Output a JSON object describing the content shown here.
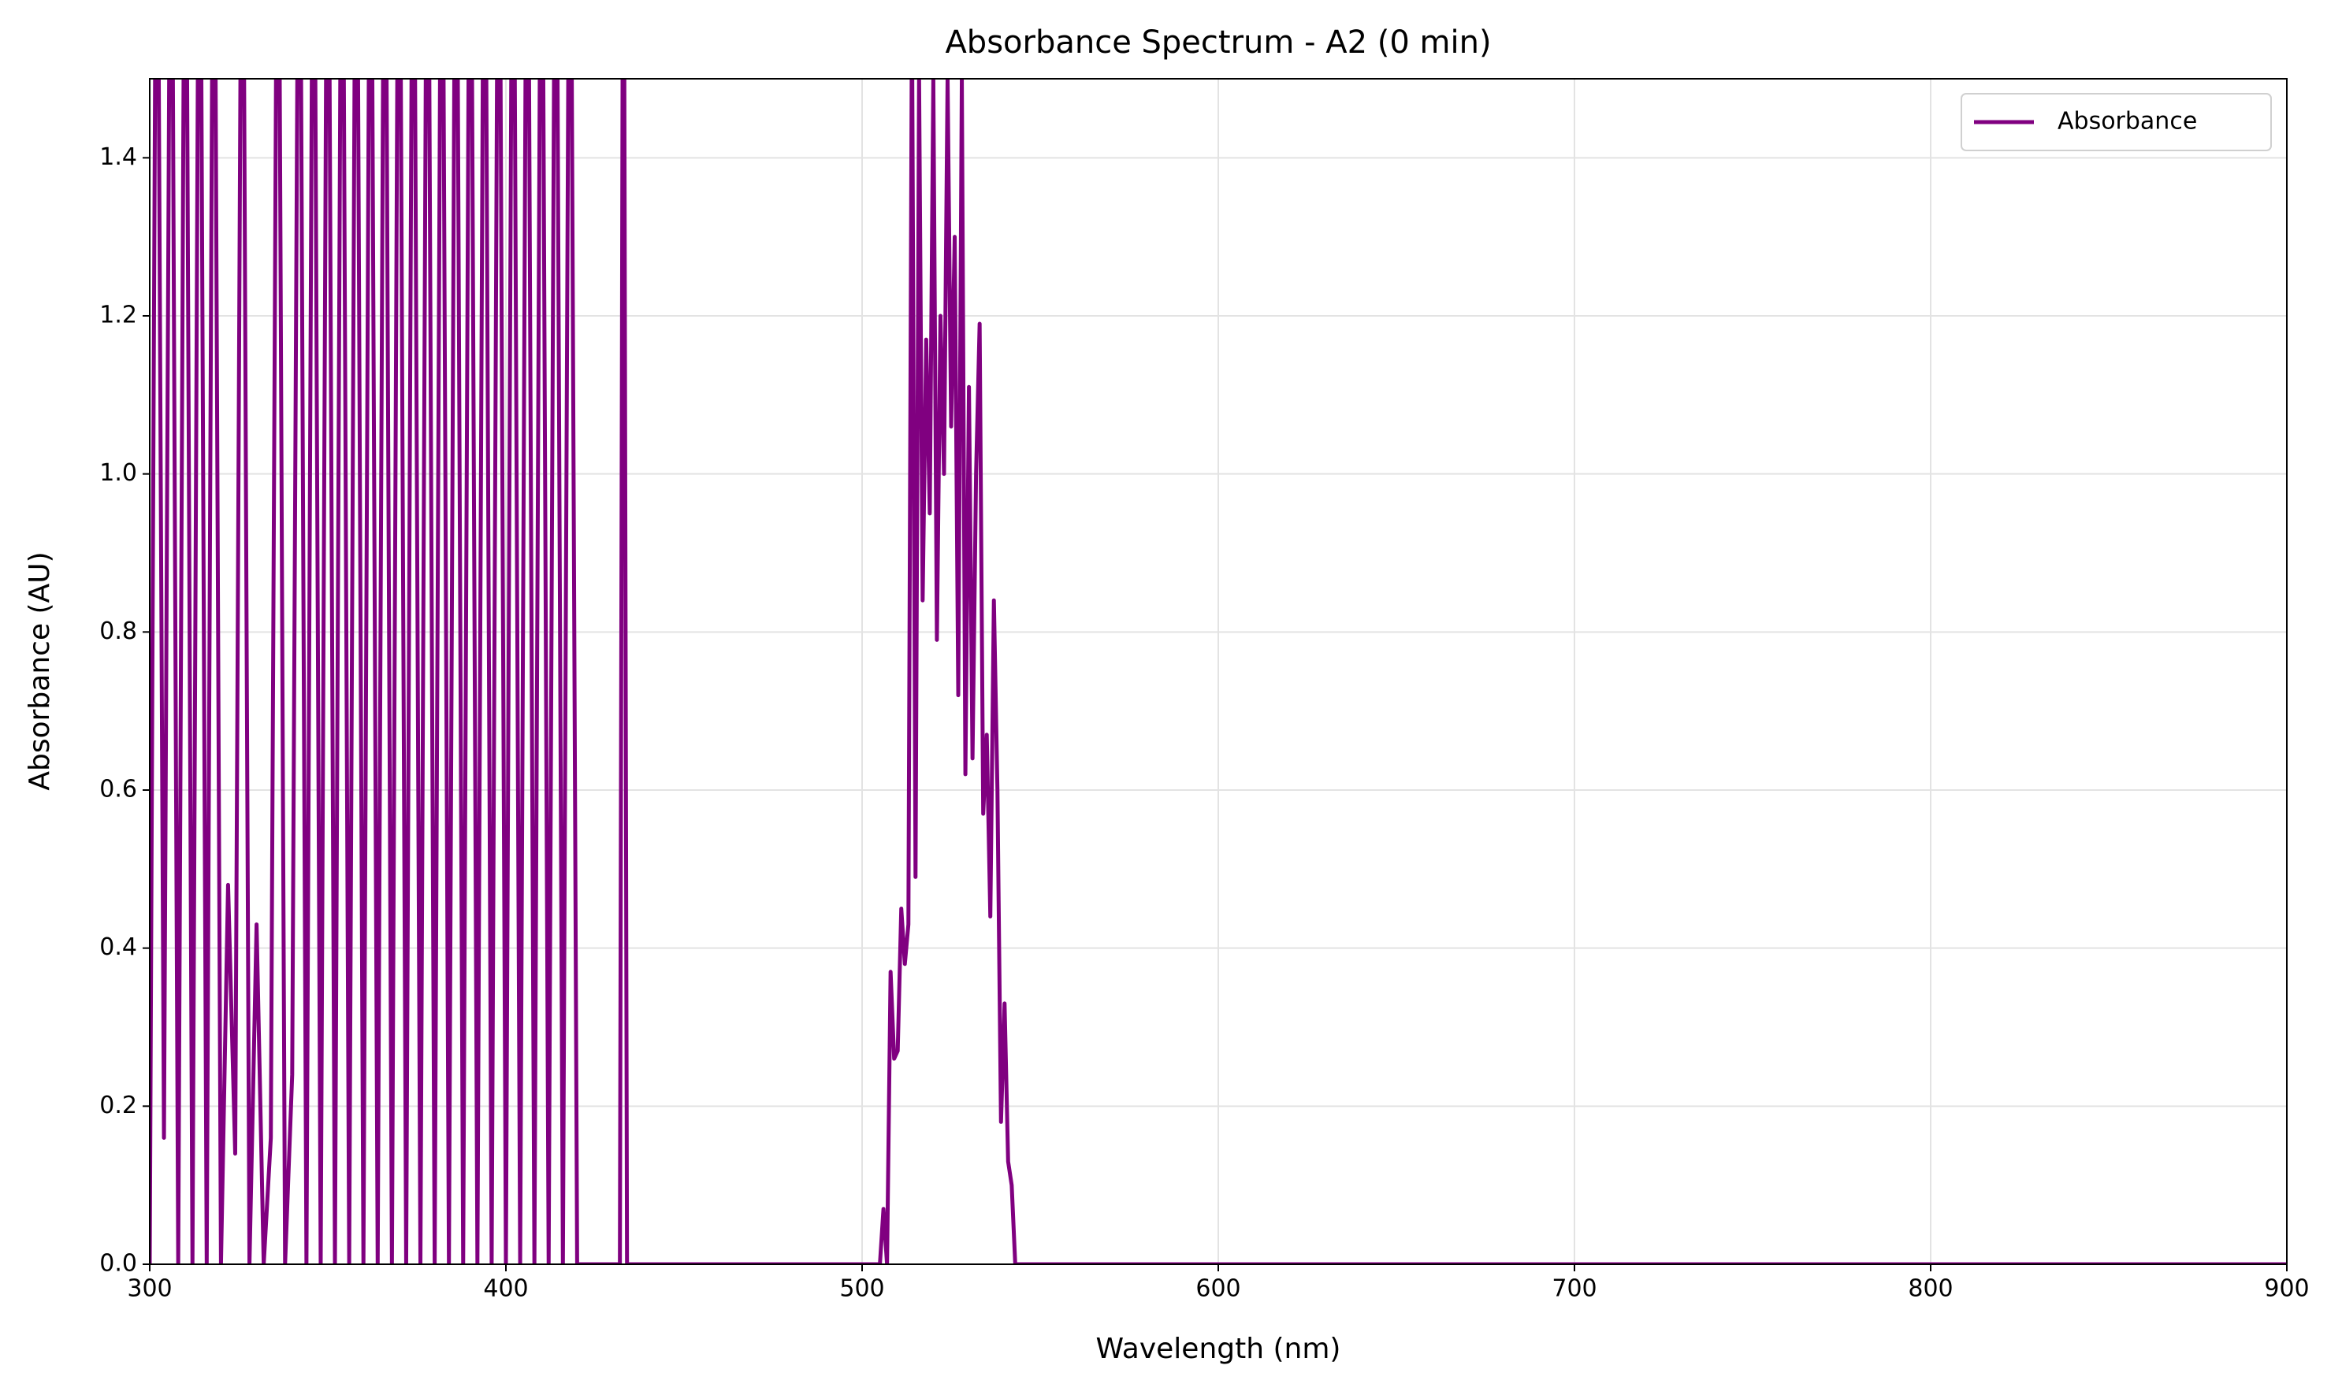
{
  "chart_data": {
    "type": "line",
    "title": "Absorbance Spectrum - A2 (0 min)",
    "x_label": "Wavelength (nm)",
    "y_label": "Absorbance (AU)",
    "xlim": [
      300,
      900
    ],
    "ylim": [
      0,
      1.5
    ],
    "xticks": [
      300,
      400,
      500,
      600,
      700,
      800,
      900
    ],
    "yticks": [
      {
        "value": 0,
        "label": "0.0"
      },
      {
        "value": 0.2,
        "label": "0.2"
      },
      {
        "value": 0.4,
        "label": "0.4"
      },
      {
        "value": 0.6,
        "label": "0.6"
      },
      {
        "value": 0.8,
        "label": "0.8"
      },
      {
        "value": 1,
        "label": "1.0"
      },
      {
        "value": 1.2,
        "label": "1.2"
      },
      {
        "value": 1.4,
        "label": "1.4"
      }
    ],
    "grid": true,
    "legend": "upper right",
    "x": [
      300,
      302,
      304,
      306,
      308,
      310,
      312,
      314,
      316,
      318,
      320,
      322,
      324,
      326,
      328,
      330,
      332,
      334,
      336,
      338,
      340,
      342,
      344,
      346,
      348,
      350,
      352,
      354,
      356,
      358,
      360,
      362,
      364,
      366,
      368,
      370,
      372,
      374,
      376,
      378,
      380,
      382,
      384,
      386,
      388,
      390,
      392,
      394,
      396,
      398,
      400,
      402,
      404,
      406,
      408,
      410,
      412,
      414,
      416,
      418,
      420,
      430,
      432,
      433,
      434,
      436,
      505,
      506,
      507,
      508,
      509,
      510,
      511,
      512,
      513,
      514,
      515,
      516,
      517,
      518,
      519,
      520,
      521,
      522,
      523,
      524,
      525,
      526,
      527,
      528,
      529,
      530,
      531,
      532,
      533,
      534,
      535,
      536,
      537,
      538,
      539,
      540,
      541,
      542,
      543,
      900
    ],
    "series": [
      {
        "name": "Absorbance",
        "color": "#800080",
        "values": [
          0,
          2,
          0.16,
          2,
          0,
          2,
          0,
          2,
          0,
          2,
          0,
          0.48,
          0.14,
          2,
          0,
          0.43,
          0,
          0.16,
          2,
          0,
          0.24,
          2,
          0,
          2,
          0,
          2,
          0,
          2,
          0,
          2,
          0,
          2,
          0,
          2,
          0,
          2,
          0,
          2,
          0,
          2,
          0,
          2,
          0,
          2,
          0,
          2,
          0,
          2,
          0,
          2,
          0,
          2,
          0,
          2,
          0,
          2,
          0,
          2,
          0,
          2,
          0,
          0,
          0,
          2,
          0,
          0,
          0,
          0.07,
          0,
          0.37,
          0.26,
          0.27,
          0.45,
          0.38,
          0.43,
          1.6,
          0.49,
          1.5,
          0.84,
          1.17,
          0.95,
          1.5,
          0.79,
          1.2,
          1.0,
          1.5,
          1.06,
          1.3,
          0.72,
          1.5,
          0.62,
          1.11,
          0.64,
          1.0,
          1.19,
          0.57,
          0.67,
          0.44,
          0.84,
          0.6,
          0.18,
          0.33,
          0.13,
          0.1,
          0,
          0
        ]
      }
    ]
  }
}
